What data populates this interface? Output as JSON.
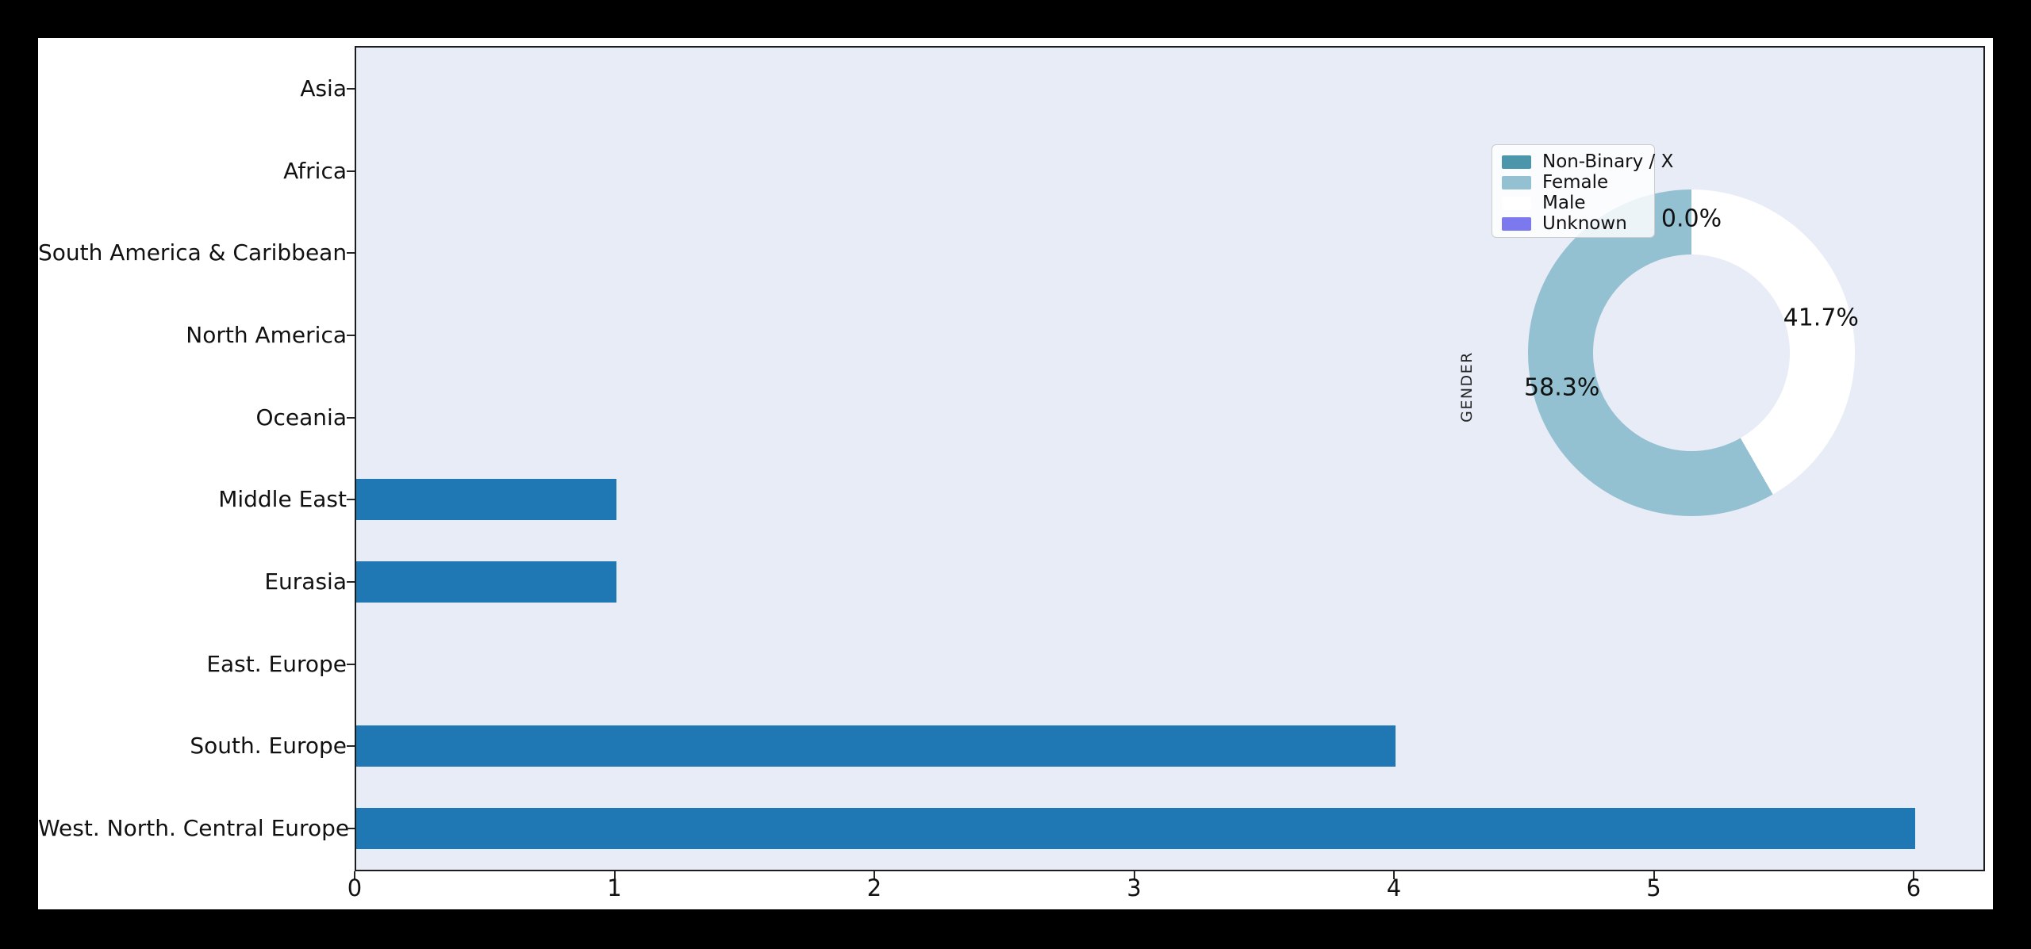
{
  "figure": {
    "page_background": "#000000",
    "canvas_background": "#ffffff",
    "plot_background": "#e8ecf7",
    "spine_color": "#1c1c1c"
  },
  "chart_data": [
    {
      "type": "bar",
      "orientation": "horizontal",
      "title": "",
      "xlabel": "",
      "ylabel": "",
      "categories": [
        "Asia",
        "Africa",
        "South America & Caribbean",
        "North America",
        "Oceania",
        "Middle East",
        "Eurasia",
        "East. Europe",
        "South. Europe",
        "West. North. Central Europe"
      ],
      "values": [
        0,
        0,
        0,
        0,
        0,
        1,
        1,
        0,
        4,
        6
      ],
      "xticks": [
        "0",
        "1",
        "2",
        "3",
        "4",
        "5",
        "6"
      ],
      "xlim": [
        0,
        6.28
      ],
      "bar_color": "#1f77b4",
      "grid": false,
      "legend_position": "none"
    },
    {
      "type": "pie",
      "donut": true,
      "ylabel": "GENDER",
      "labels": [
        "Non-Binary / X",
        "Female",
        "Male",
        "Unknown"
      ],
      "values": [
        0.0,
        58.3,
        41.7,
        0.0
      ],
      "colors": [
        "#4b96aa",
        "#94c1d1",
        "#ffffff",
        "#7c79ee"
      ],
      "pct_labels": [
        "0.0%",
        "58.3%",
        "41.7%"
      ],
      "start_angle": 90,
      "counterclockwise": true,
      "legend_position": "upper left"
    }
  ]
}
